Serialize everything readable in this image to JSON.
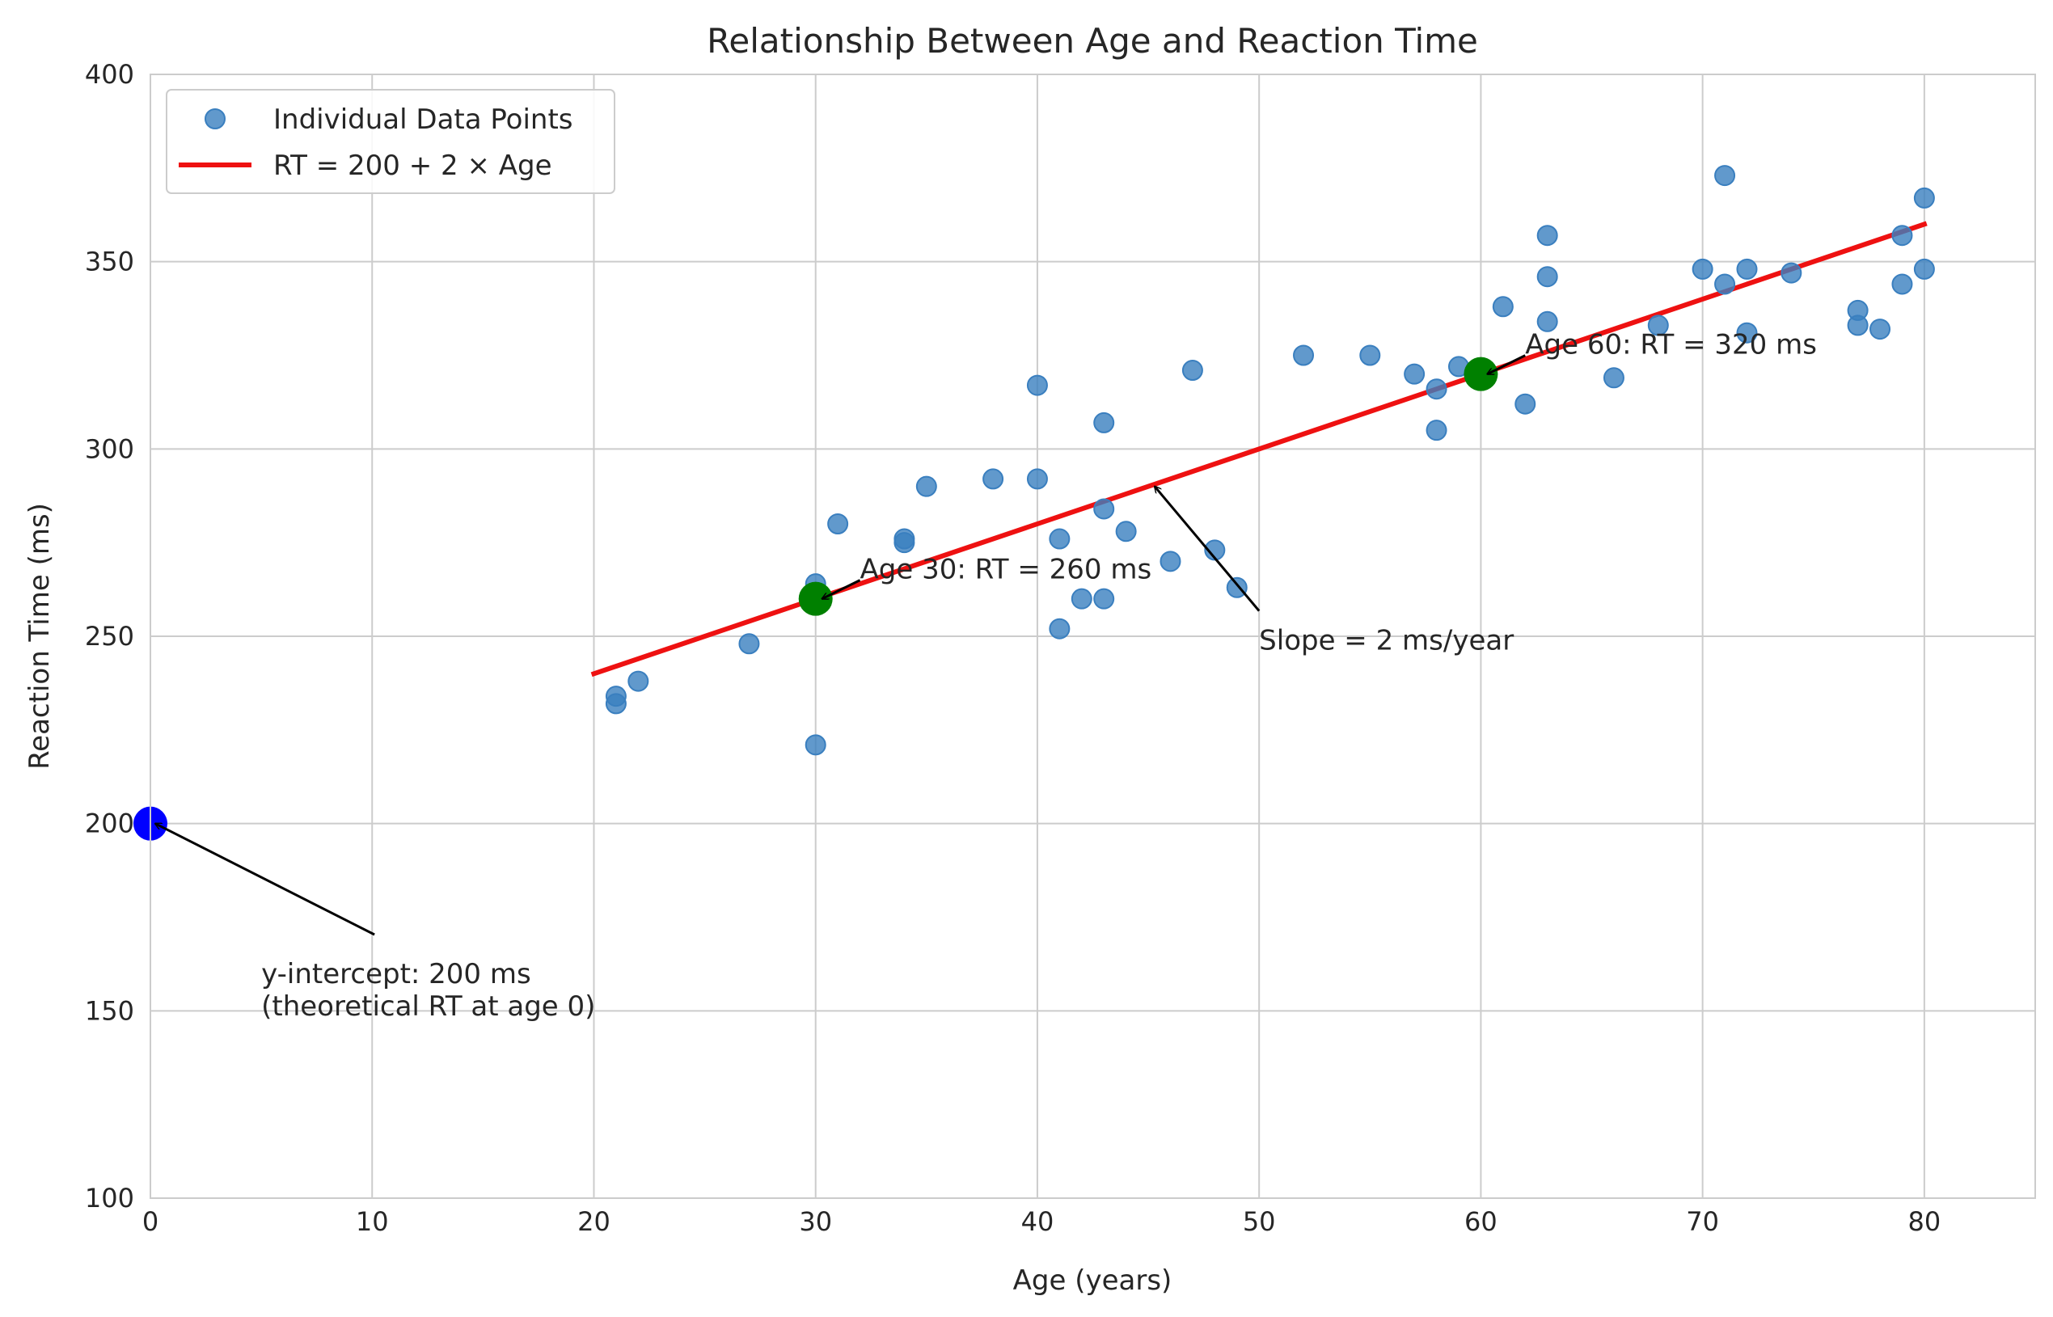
{
  "chart_data": {
    "type": "scatter",
    "title": "Relationship Between Age and Reaction Time",
    "xlabel": "Age (years)",
    "ylabel": "Reaction Time (ms)",
    "xlim": [
      0,
      85
    ],
    "ylim": [
      100,
      400
    ],
    "xticks": [
      0,
      10,
      20,
      30,
      40,
      50,
      60,
      70,
      80
    ],
    "yticks": [
      100,
      150,
      200,
      250,
      300,
      350,
      400
    ],
    "grid": true,
    "legend": {
      "placement": "top-left",
      "entries": [
        "Individual Data Points",
        "RT = 200 + 2 × Age"
      ]
    },
    "series": [
      {
        "name": "Individual Data Points",
        "type": "scatter",
        "color": "#3a7fbf",
        "points": [
          [
            21,
            234
          ],
          [
            21,
            232
          ],
          [
            22,
            238
          ],
          [
            27,
            248
          ],
          [
            30,
            264
          ],
          [
            30,
            221
          ],
          [
            31,
            280
          ],
          [
            34,
            275
          ],
          [
            34,
            276
          ],
          [
            35,
            290
          ],
          [
            38,
            292
          ],
          [
            40,
            317
          ],
          [
            40,
            292
          ],
          [
            41,
            276
          ],
          [
            41,
            252
          ],
          [
            42,
            260
          ],
          [
            43,
            307
          ],
          [
            43,
            284
          ],
          [
            43,
            260
          ],
          [
            44,
            278
          ],
          [
            46,
            270
          ],
          [
            47,
            321
          ],
          [
            48,
            273
          ],
          [
            49,
            263
          ],
          [
            52,
            325
          ],
          [
            55,
            325
          ],
          [
            57,
            320
          ],
          [
            58,
            316
          ],
          [
            58,
            305
          ],
          [
            59,
            322
          ],
          [
            61,
            338
          ],
          [
            62,
            312
          ],
          [
            63,
            357
          ],
          [
            63,
            346
          ],
          [
            63,
            334
          ],
          [
            66,
            319
          ],
          [
            68,
            333
          ],
          [
            70,
            348
          ],
          [
            71,
            373
          ],
          [
            71,
            344
          ],
          [
            72,
            348
          ],
          [
            72,
            331
          ],
          [
            74,
            347
          ],
          [
            77,
            337
          ],
          [
            77,
            333
          ],
          [
            78,
            332
          ],
          [
            79,
            357
          ],
          [
            79,
            344
          ],
          [
            80,
            367
          ],
          [
            80,
            348
          ]
        ]
      },
      {
        "name": "RT = 200 + 2 × Age",
        "type": "line",
        "color": "#ee1111",
        "x": [
          20,
          80
        ],
        "y": [
          240,
          360
        ]
      }
    ],
    "highlight_points": [
      {
        "x": 0,
        "y": 200,
        "color": "#0000ff"
      },
      {
        "x": 30,
        "y": 260,
        "color": "#008000"
      },
      {
        "x": 60,
        "y": 320,
        "color": "#008000"
      }
    ],
    "annotations": [
      {
        "lines": [
          "y-intercept: 200 ms",
          "(theoretical RT at age 0)"
        ],
        "text_at": [
          5,
          160
        ],
        "arrow_to": [
          0,
          200
        ]
      },
      {
        "lines": [
          "Age 30: RT = 260 ms"
        ],
        "text_at": [
          32,
          268
        ],
        "arrow_to": [
          30,
          260
        ]
      },
      {
        "lines": [
          "Age 60: RT = 320 ms"
        ],
        "text_at": [
          62,
          328
        ],
        "arrow_to": [
          60,
          320
        ]
      },
      {
        "lines": [
          "Slope = 2 ms/year"
        ],
        "text_at": [
          50,
          249
        ],
        "arrow_to": [
          45,
          290
        ]
      }
    ]
  }
}
